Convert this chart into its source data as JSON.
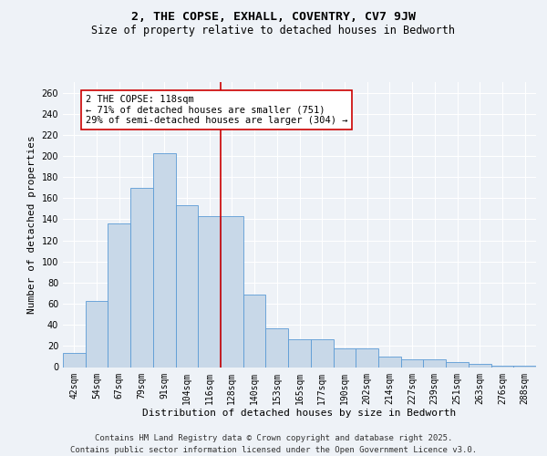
{
  "title": "2, THE COPSE, EXHALL, COVENTRY, CV7 9JW",
  "subtitle": "Size of property relative to detached houses in Bedworth",
  "xlabel": "Distribution of detached houses by size in Bedworth",
  "ylabel": "Number of detached properties",
  "categories": [
    "42sqm",
    "54sqm",
    "67sqm",
    "79sqm",
    "91sqm",
    "104sqm",
    "116sqm",
    "128sqm",
    "140sqm",
    "153sqm",
    "165sqm",
    "177sqm",
    "190sqm",
    "202sqm",
    "214sqm",
    "227sqm",
    "239sqm",
    "251sqm",
    "263sqm",
    "276sqm",
    "288sqm"
  ],
  "values": [
    13,
    63,
    136,
    170,
    203,
    153,
    143,
    143,
    69,
    37,
    26,
    26,
    18,
    18,
    10,
    7,
    7,
    5,
    3,
    1,
    1
  ],
  "bar_color": "#c8d8e8",
  "bar_edge_color": "#5b9bd5",
  "highlight_color": "#cc0000",
  "highlight_idx": 6,
  "annotation_text": "2 THE COPSE: 118sqm\n← 71% of detached houses are smaller (751)\n29% of semi-detached houses are larger (304) →",
  "annotation_box_color": "#ffffff",
  "annotation_box_edge": "#cc0000",
  "ylim": [
    0,
    270
  ],
  "yticks": [
    0,
    20,
    40,
    60,
    80,
    100,
    120,
    140,
    160,
    180,
    200,
    220,
    240,
    260
  ],
  "footer_text": "Contains HM Land Registry data © Crown copyright and database right 2025.\nContains public sector information licensed under the Open Government Licence v3.0.",
  "background_color": "#eef2f7",
  "grid_color": "#ffffff",
  "title_fontsize": 9.5,
  "subtitle_fontsize": 8.5,
  "axis_label_fontsize": 8,
  "tick_fontsize": 7,
  "annotation_fontsize": 7.5,
  "footer_fontsize": 6.5
}
